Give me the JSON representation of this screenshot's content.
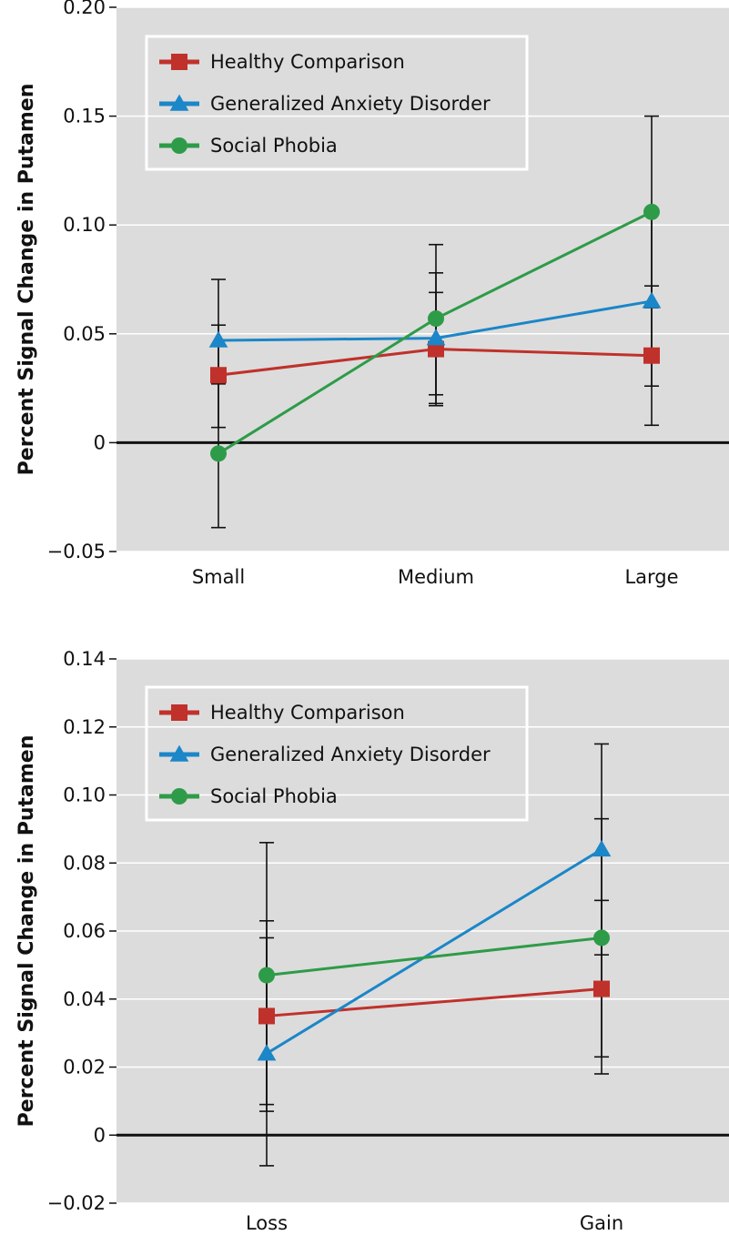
{
  "colors": {
    "panel_bg": "#dcdcdc",
    "grid": "#ffffff",
    "zero_line": "#111111",
    "error_bar": "#111111"
  },
  "chart_data": [
    {
      "type": "line",
      "title": "",
      "xlabel": "",
      "ylabel": "Percent Signal Change in Putamen",
      "categories": [
        "Small",
        "Medium",
        "Large"
      ],
      "ylim": [
        -0.05,
        0.2
      ],
      "yticks": [
        -0.05,
        0,
        0.05,
        0.1,
        0.15,
        0.2
      ],
      "ytick_labels": [
        "−0.05",
        "0",
        "0.05",
        "0.10",
        "0.15",
        "0.20"
      ],
      "grid": true,
      "legend_position": "top-left",
      "series": [
        {
          "name": "Healthy Comparison",
          "color": "#c0312b",
          "marker": "square",
          "values": [
            0.031,
            0.043,
            0.04
          ],
          "err_low": [
            0.007,
            0.018,
            0.008
          ],
          "err_high": [
            0.054,
            0.069,
            0.072
          ]
        },
        {
          "name": "Generalized Anxiety Disorder",
          "color": "#1b86c8",
          "marker": "triangle",
          "values": [
            0.047,
            0.048,
            0.065
          ],
          "err_low": [
            0.027,
            0.017,
            0.026
          ],
          "err_high": [
            0.075,
            0.078,
            0.105
          ]
        },
        {
          "name": "Social Phobia",
          "color": "#2e9b48",
          "marker": "circle",
          "values": [
            -0.005,
            0.057,
            0.106
          ],
          "err_low": [
            -0.039,
            0.022,
            0.062
          ],
          "err_high": [
            0.03,
            0.091,
            0.15
          ]
        }
      ]
    },
    {
      "type": "line",
      "title": "",
      "xlabel": "",
      "ylabel": "Percent Signal Change in Putamen",
      "categories": [
        "Loss",
        "Gain"
      ],
      "ylim": [
        -0.02,
        0.14
      ],
      "yticks": [
        -0.02,
        0,
        0.02,
        0.04,
        0.06,
        0.08,
        0.1,
        0.12,
        0.14
      ],
      "ytick_labels": [
        "−0.02",
        "0",
        "0.02",
        "0.04",
        "0.06",
        "0.08",
        "0.10",
        "0.12",
        "0.14"
      ],
      "grid": true,
      "legend_position": "top-left",
      "series": [
        {
          "name": "Healthy Comparison",
          "color": "#c0312b",
          "marker": "square",
          "values": [
            0.035,
            0.043
          ],
          "err_low": [
            0.009,
            0.023
          ],
          "err_high": [
            0.063,
            0.069
          ]
        },
        {
          "name": "Generalized Anxiety Disorder",
          "color": "#1b86c8",
          "marker": "triangle",
          "values": [
            0.024,
            0.084
          ],
          "err_low": [
            -0.009,
            0.053
          ],
          "err_high": [
            0.058,
            0.115
          ]
        },
        {
          "name": "Social Phobia",
          "color": "#2e9b48",
          "marker": "circle",
          "values": [
            0.047,
            0.058
          ],
          "err_low": [
            0.007,
            0.018
          ],
          "err_high": [
            0.086,
            0.093
          ]
        }
      ]
    }
  ]
}
